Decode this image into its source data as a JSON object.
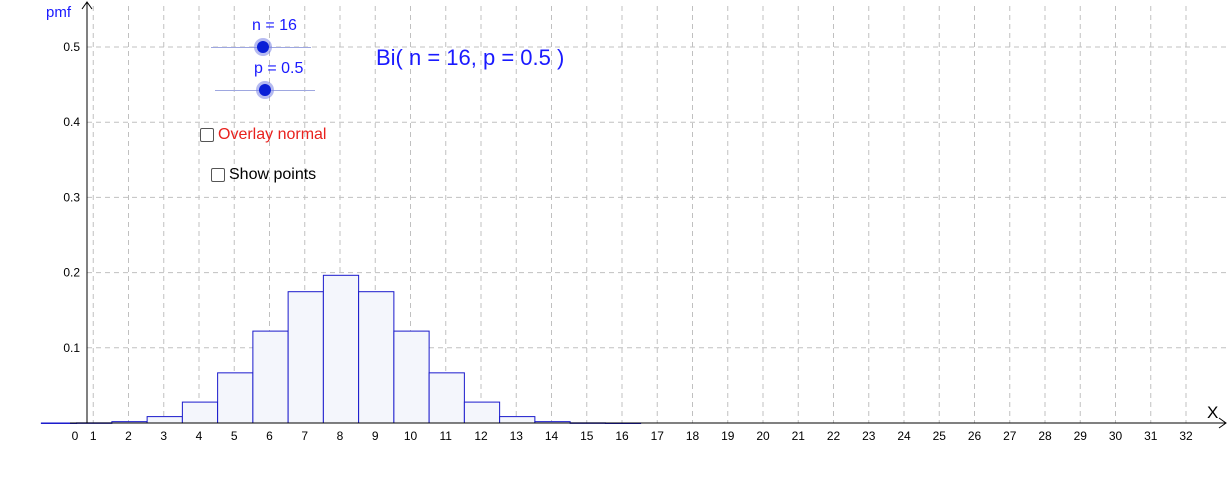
{
  "chart_data": {
    "type": "bar",
    "xlabel": "X",
    "ylabel": "pmf",
    "xlim": [
      0,
      32
    ],
    "ylim": [
      0,
      0.5
    ],
    "x_ticks": [
      0,
      1,
      2,
      3,
      4,
      5,
      6,
      7,
      8,
      9,
      10,
      11,
      12,
      13,
      14,
      15,
      16,
      17,
      18,
      19,
      20,
      21,
      22,
      23,
      24,
      25,
      26,
      27,
      28,
      29,
      30,
      31,
      32
    ],
    "y_ticks": [
      0.1,
      0.2,
      0.3,
      0.4,
      0.5
    ],
    "grid": true,
    "categories": [
      0,
      1,
      2,
      3,
      4,
      5,
      6,
      7,
      8,
      9,
      10,
      11,
      12,
      13,
      14,
      15,
      16
    ],
    "values": [
      2e-05,
      0.0002,
      0.0018,
      0.0085,
      0.0278,
      0.0667,
      0.1222,
      0.1746,
      0.1964,
      0.1746,
      0.1222,
      0.0667,
      0.0278,
      0.0085,
      0.0018,
      0.0002,
      2e-05
    ],
    "title": "Bi( n = 16, p = 0.5 )",
    "colors": {
      "bar_stroke": "#1a1acc",
      "bar_fill": "#f4f6fc",
      "accent": "#1a1aff",
      "overlay_label": "#e8211d"
    }
  },
  "controls": {
    "n_slider": {
      "label": "n = 16",
      "value": 16
    },
    "p_slider": {
      "label": "p = 0.5",
      "value": 0.5
    },
    "overlay_normal": {
      "label": "Overlay normal",
      "checked": false
    },
    "show_points": {
      "label": "Show points",
      "checked": false
    }
  }
}
